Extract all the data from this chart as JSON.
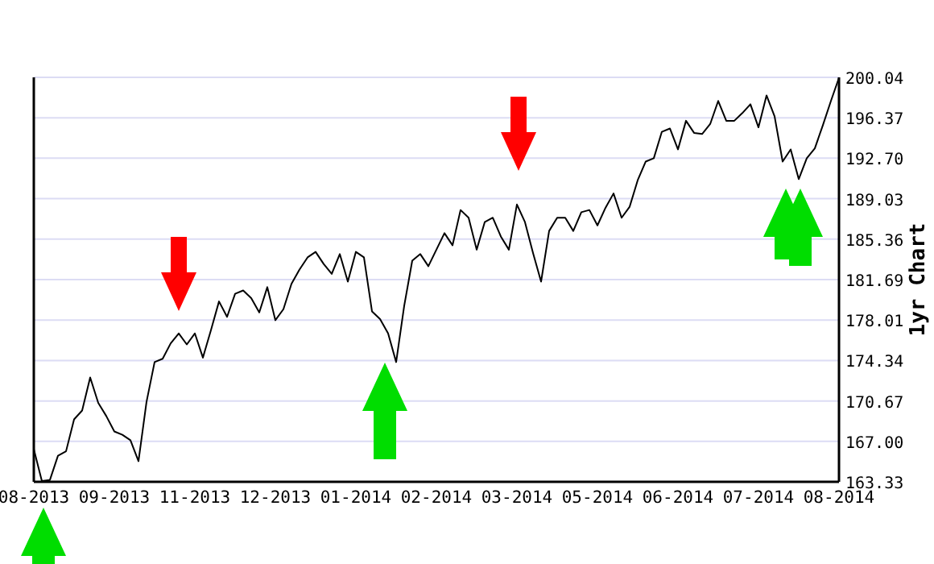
{
  "chart_data": {
    "type": "line",
    "ylabel": "1yr Chart",
    "grid": "y",
    "marker": "none",
    "line_style": "solid",
    "categories": [
      "08-2013",
      null,
      null,
      null,
      null,
      null,
      null,
      null,
      null,
      null,
      "09-2013",
      null,
      null,
      null,
      null,
      null,
      null,
      null,
      null,
      null,
      "11-2013",
      null,
      null,
      null,
      null,
      null,
      null,
      null,
      null,
      null,
      "12-2013",
      null,
      null,
      null,
      null,
      null,
      null,
      null,
      null,
      null,
      "01-2014",
      null,
      null,
      null,
      null,
      null,
      null,
      null,
      null,
      null,
      "02-2014",
      null,
      null,
      null,
      null,
      null,
      null,
      null,
      null,
      null,
      "03-2014",
      null,
      null,
      null,
      null,
      null,
      null,
      null,
      null,
      null,
      "05-2014",
      null,
      null,
      null,
      null,
      null,
      null,
      null,
      null,
      null,
      "06-2014",
      null,
      null,
      null,
      null,
      null,
      null,
      null,
      null,
      null,
      "07-2014",
      null,
      null,
      null,
      null,
      null,
      null,
      null,
      null,
      null,
      "08-2014"
    ],
    "series": [
      {
        "color": "#000000",
        "values": [
          166.3,
          163.4,
          163.5,
          165.7,
          166.1,
          169.0,
          169.8,
          172.8,
          170.5,
          169.3,
          167.9,
          167.6,
          167.1,
          165.2,
          170.6,
          174.2,
          174.5,
          175.9,
          176.8,
          175.8,
          176.8,
          174.6,
          177.1,
          179.7,
          178.3,
          180.4,
          180.7,
          180.0,
          178.7,
          181.0,
          178.0,
          179.0,
          181.3,
          182.6,
          183.7,
          184.2,
          183.1,
          182.2,
          184.0,
          181.5,
          184.2,
          183.7,
          178.8,
          178.1,
          176.8,
          174.2,
          179.3,
          183.4,
          184.0,
          182.9,
          184.4,
          185.9,
          184.8,
          188.0,
          187.3,
          184.4,
          186.9,
          187.3,
          185.6,
          184.4,
          188.5,
          186.9,
          184.1,
          181.5,
          186.1,
          187.3,
          187.3,
          186.1,
          187.8,
          188.0,
          186.6,
          188.2,
          189.5,
          187.3,
          188.3,
          190.7,
          192.4,
          192.7,
          195.1,
          195.4,
          193.5,
          196.1,
          195.0,
          194.9,
          195.8,
          197.9,
          196.1,
          196.1,
          196.8,
          197.6,
          195.5,
          198.4,
          196.5,
          192.4,
          193.5,
          190.8,
          192.7,
          193.6,
          195.7,
          197.9,
          200.0
        ]
      }
    ],
    "ylim": [
      163.33,
      200.04
    ],
    "yticks": [
      {
        "value": 163.33,
        "label": "163.33"
      },
      {
        "value": 167,
        "label": "167.00"
      },
      {
        "value": 170.67,
        "label": "170.67"
      },
      {
        "value": 174.34,
        "label": "174.34"
      },
      {
        "value": 178.01,
        "label": "178.01"
      },
      {
        "value": 181.69,
        "label": "181.69"
      },
      {
        "value": 185.36,
        "label": "185.36"
      },
      {
        "value": 189.03,
        "label": "189.03"
      },
      {
        "value": 192.7,
        "label": "192.70"
      },
      {
        "value": 196.37,
        "label": "196.37"
      },
      {
        "value": 200.04,
        "label": "200.04"
      }
    ]
  }
}
